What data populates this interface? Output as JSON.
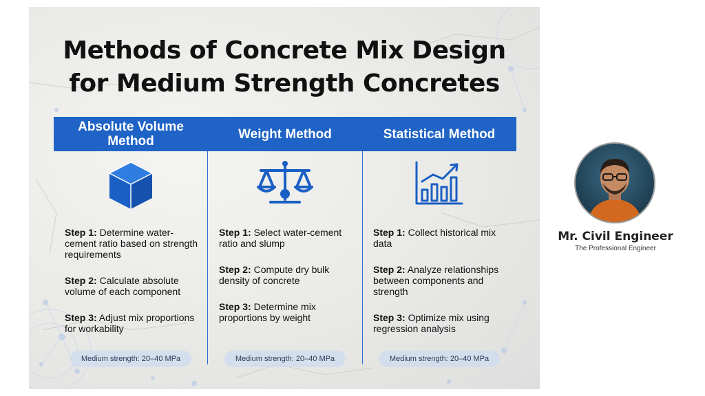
{
  "title": {
    "line1": "Methods of Concrete Mix Design",
    "line2": "for Medium Strength Concretes"
  },
  "columns": [
    {
      "heading": "Absolute Volume Method",
      "icon": "cube-icon",
      "steps": [
        {
          "label": "Step 1:",
          "text": " Determine water-cement ratio based on strength requirements"
        },
        {
          "label": "Step 2:",
          "text": " Calculate absolute volume of each component"
        },
        {
          "label": "Step 3:",
          "text": " Adjust mix proportions for workability"
        }
      ],
      "footer": "Medium strength: 20–40 MPa"
    },
    {
      "heading": "Weight Method",
      "icon": "balance-scale-icon",
      "steps": [
        {
          "label": "Step 1:",
          "text": " Select water-cement ratio and slump"
        },
        {
          "label": "Step 2:",
          "text": " Compute dry bulk density of concrete"
        },
        {
          "label": "Step 3:",
          "text": " Determine mix proportions by weight"
        }
      ],
      "footer": "Medium strength: 20–40 MPa"
    },
    {
      "heading": "Statistical Method",
      "icon": "bar-chart-trend-icon",
      "steps": [
        {
          "label": "Step 1:",
          "text": " Collect historical mix data"
        },
        {
          "label": "Step 2:",
          "text": " Analyze relationships between components and strength"
        },
        {
          "label": "Step 3:",
          "text": " Optimize mix using regression analysis"
        }
      ],
      "footer": "Medium strength: 20–40 MPa"
    }
  ],
  "brand": {
    "name": "Mr. Civil Engineer",
    "tagline": "The Professional Engineer",
    "avatar_icon": "engineer-avatar-icon"
  },
  "colors": {
    "accent_blue": "#1f63c6",
    "background": "#ffffff"
  }
}
